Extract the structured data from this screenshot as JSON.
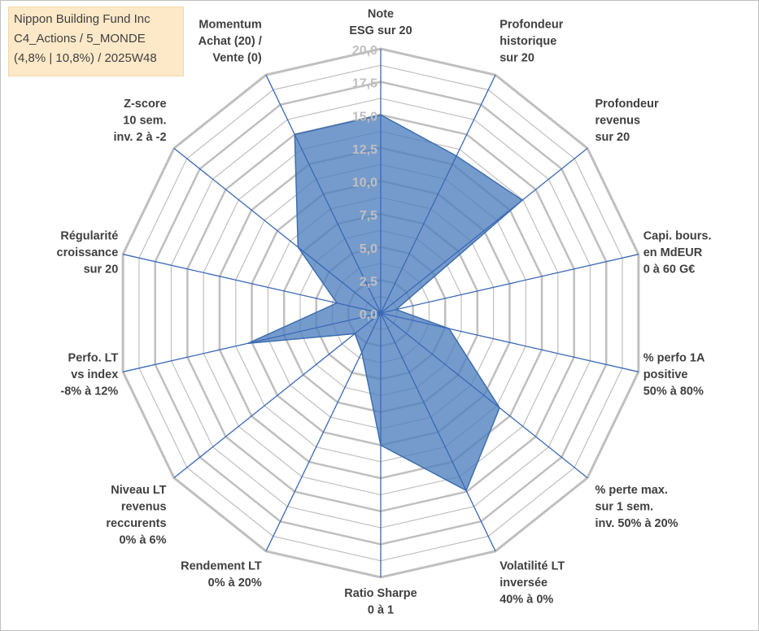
{
  "header": {
    "lines": [
      "Nippon Building Fund Inc",
      "C4_Actions / 5_MONDE",
      "(4,8% | 10,8%) / 2025W48"
    ]
  },
  "chart_data": {
    "type": "radar",
    "rmin": 0,
    "rmax": 20,
    "ticks": [
      "0,0",
      "2,5",
      "5,0",
      "7,5",
      "10,0",
      "12,5",
      "15,0",
      "17,5",
      "20,0"
    ],
    "grid": true,
    "fill_color": "#4e7fbf",
    "axis_color": "#3a68b6",
    "grid_color": "#bfbfbf",
    "axes": [
      {
        "label": [
          "Note",
          "ESG sur 20"
        ],
        "value": 15.0
      },
      {
        "label": [
          "Profondeur",
          "historique",
          "sur 20"
        ],
        "value": 13.2
      },
      {
        "label": [
          "Profondeur",
          "revenus",
          "sur 20"
        ],
        "value": 13.7
      },
      {
        "label": [
          "Capi. bours.",
          "en MdEUR",
          "0 à 60 G€"
        ],
        "value": 1.2
      },
      {
        "label": [
          "% perfo 1A",
          "positive",
          "50% à 80%"
        ],
        "value": 5.3
      },
      {
        "label": [
          "% perte max.",
          "sur 1 sem.",
          "inv. 50% à 20%"
        ],
        "value": 11.5
      },
      {
        "label": [
          "Volatilité LT",
          "inversée",
          "40% à 0%"
        ],
        "value": 14.9
      },
      {
        "label": [
          "Ratio Sharpe",
          "0 à 1"
        ],
        "value": 10.0
      },
      {
        "label": [
          "Rendement LT",
          "0% à 20%"
        ],
        "value": 3.3
      },
      {
        "label": [
          "Niveau LT",
          "revenus",
          "reccurents",
          "0% à 6%"
        ],
        "value": 2.5
      },
      {
        "label": [
          "Perfo. LT",
          "vs index",
          "-8% à 12%"
        ],
        "value": 10.3
      },
      {
        "label": [
          "Régularité",
          "croissance",
          "sur 20"
        ],
        "value": 3.4
      },
      {
        "label": [
          "Z-score",
          "10 sem.",
          "inv. 2 à -2"
        ],
        "value": 8.0
      },
      {
        "label": [
          "Momentum",
          "Achat (20) /",
          "Vente (0)"
        ],
        "value": 15.0
      }
    ]
  }
}
